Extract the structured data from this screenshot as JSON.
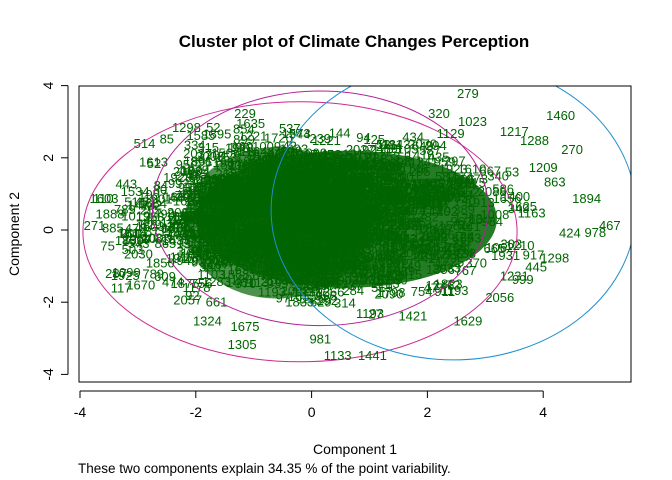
{
  "chart_data": {
    "type": "scatter",
    "title": "Cluster plot of Climate Changes Perception",
    "xlabel": "Component 1",
    "ylabel": "Component 2",
    "caption": "These two components explain 34.35 % of the point variability.",
    "xlim": [
      -4.3,
      5.6
    ],
    "ylim": [
      -4.0,
      4.0
    ],
    "x_ticks": [
      -4,
      -2,
      0,
      2,
      4
    ],
    "y_ticks": [
      -4,
      -2,
      0,
      2,
      4
    ],
    "grid": false,
    "legend": "none",
    "colors": {
      "points": "#006400",
      "cluster_1_ellipse": "#CD2990",
      "cluster_2_ellipse": "#B22296",
      "cluster_3_ellipse": "#1E8FCF",
      "axes": "#000000"
    },
    "ellipses": [
      {
        "cluster": 1,
        "center": [
          -0.2,
          -0.05
        ],
        "semi_axes": [
          3.75,
          3.6
        ],
        "angle": 0
      },
      {
        "cluster": 2,
        "center": [
          0.15,
          0.6
        ],
        "semi_axes": [
          2.9,
          3.25
        ],
        "angle": 0
      },
      {
        "cluster": 3,
        "center": [
          2.45,
          0.55
        ],
        "semi_axes": [
          3.15,
          4.15
        ],
        "angle": 0
      }
    ],
    "labeled_points": [
      {
        "label": "279",
        "x": 2.7,
        "y": 3.65
      },
      {
        "label": "320",
        "x": 2.2,
        "y": 3.1
      },
      {
        "label": "1460",
        "x": 4.3,
        "y": 3.05
      },
      {
        "label": "229",
        "x": -1.15,
        "y": 3.1
      },
      {
        "label": "85",
        "x": -2.5,
        "y": 2.4
      },
      {
        "label": "270",
        "x": 4.5,
        "y": 2.1
      },
      {
        "label": "1288",
        "x": 3.85,
        "y": 2.35
      },
      {
        "label": "863",
        "x": 4.2,
        "y": 1.2
      },
      {
        "label": "1894",
        "x": 4.75,
        "y": 0.75
      },
      {
        "label": "467",
        "x": 5.15,
        "y": 0.0
      },
      {
        "label": "978",
        "x": 4.9,
        "y": -0.2
      },
      {
        "label": "1298",
        "x": 4.2,
        "y": -0.9
      },
      {
        "label": "110",
        "x": -3.6,
        "y": 0.75
      },
      {
        "label": "443",
        "x": -3.2,
        "y": 1.15
      },
      {
        "label": "271",
        "x": -3.75,
        "y": 0.0
      },
      {
        "label": "1099",
        "x": -3.2,
        "y": -1.3
      },
      {
        "label": "1670",
        "x": -2.95,
        "y": -1.65
      },
      {
        "label": "1324",
        "x": -1.8,
        "y": -2.65
      },
      {
        "label": "1675",
        "x": -1.15,
        "y": -2.8
      },
      {
        "label": "1305",
        "x": -1.2,
        "y": -3.3
      },
      {
        "label": "981",
        "x": 0.15,
        "y": -3.15
      },
      {
        "label": "1133",
        "x": 0.45,
        "y": -3.6
      },
      {
        "label": "1441",
        "x": 1.05,
        "y": -3.6
      },
      {
        "label": "1421",
        "x": 1.75,
        "y": -2.5
      },
      {
        "label": "1629",
        "x": 2.7,
        "y": -2.65
      },
      {
        "label": "2056",
        "x": 3.25,
        "y": -2.0
      },
      {
        "label": "1231",
        "x": 3.5,
        "y": -1.4
      },
      {
        "label": "1210",
        "x": 3.6,
        "y": -0.55
      },
      {
        "label": "1163",
        "x": 3.8,
        "y": 0.35
      },
      {
        "label": "1209",
        "x": 4.0,
        "y": 1.6
      },
      {
        "label": "1217",
        "x": 3.5,
        "y": 2.6
      },
      {
        "label": "1129",
        "x": 2.4,
        "y": 2.55
      }
    ]
  }
}
